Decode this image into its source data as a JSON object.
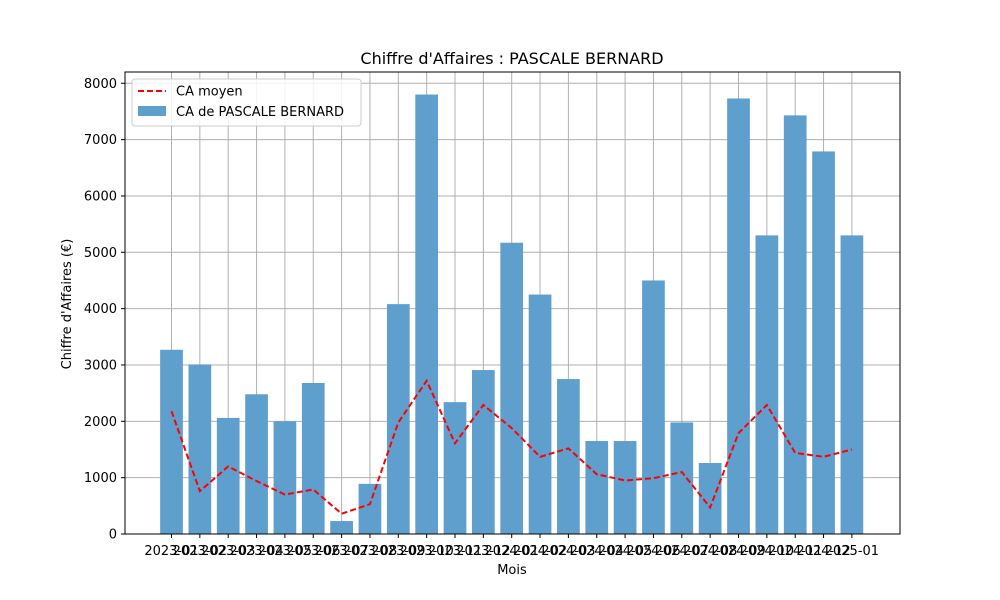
{
  "chart_data": {
    "type": "bar",
    "title": "Chiffre d'Affaires : PASCALE BERNARD",
    "xlabel": "Mois",
    "ylabel": "Chiffre d'Affaires (€)",
    "ylim": [
      0,
      8200
    ],
    "yticks": [
      0,
      1000,
      2000,
      3000,
      4000,
      5000,
      6000,
      7000,
      8000
    ],
    "grid": true,
    "legend_position": "top-left",
    "categories": [
      "2023-01",
      "2023-02",
      "2023-03",
      "2023-04",
      "2023-05",
      "2023-06",
      "2023-07",
      "2023-08",
      "2023-09",
      "2023-10",
      "2023-11",
      "2023-12",
      "2024-01",
      "2024-02",
      "2024-03",
      "2024-04",
      "2024-05",
      "2024-06",
      "2024-07",
      "2024-08",
      "2024-09",
      "2024-10",
      "2024-11",
      "2024-12",
      "2025-01"
    ],
    "series": [
      {
        "name": "CA de PASCALE BERNARD",
        "type": "bar",
        "color": "#5f9fcd",
        "values": [
          3270,
          3010,
          2060,
          2480,
          2000,
          2680,
          230,
          890,
          4080,
          7800,
          2340,
          2910,
          5170,
          4250,
          2750,
          1650,
          1650,
          4500,
          1980,
          1260,
          7730,
          5300,
          7430,
          6790,
          5300
        ]
      },
      {
        "name": "CA moyen",
        "type": "line",
        "style": "dashed",
        "color": "#ff0000",
        "values": [
          2180,
          760,
          1200,
          940,
          700,
          790,
          360,
          530,
          1980,
          2720,
          1610,
          2290,
          1880,
          1370,
          1520,
          1060,
          950,
          990,
          1100,
          470,
          1790,
          2290,
          1440,
          1370,
          1500
        ]
      }
    ]
  }
}
